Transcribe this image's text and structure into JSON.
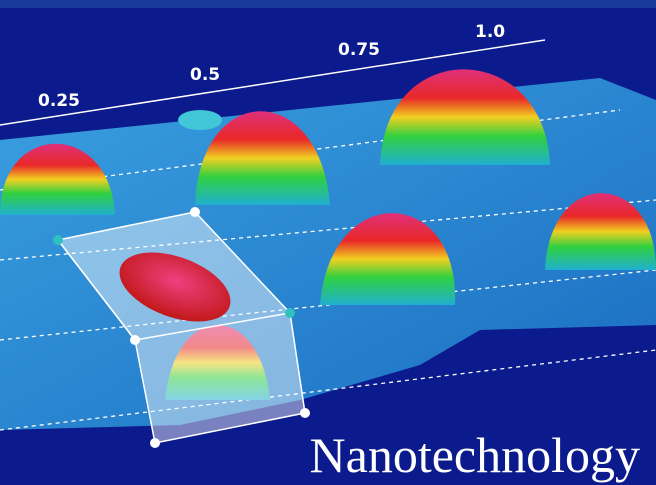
{
  "axis_labels": [
    "0.25",
    "0.5",
    "0.75",
    "1.0"
  ],
  "caption": "Nanotechnology"
}
